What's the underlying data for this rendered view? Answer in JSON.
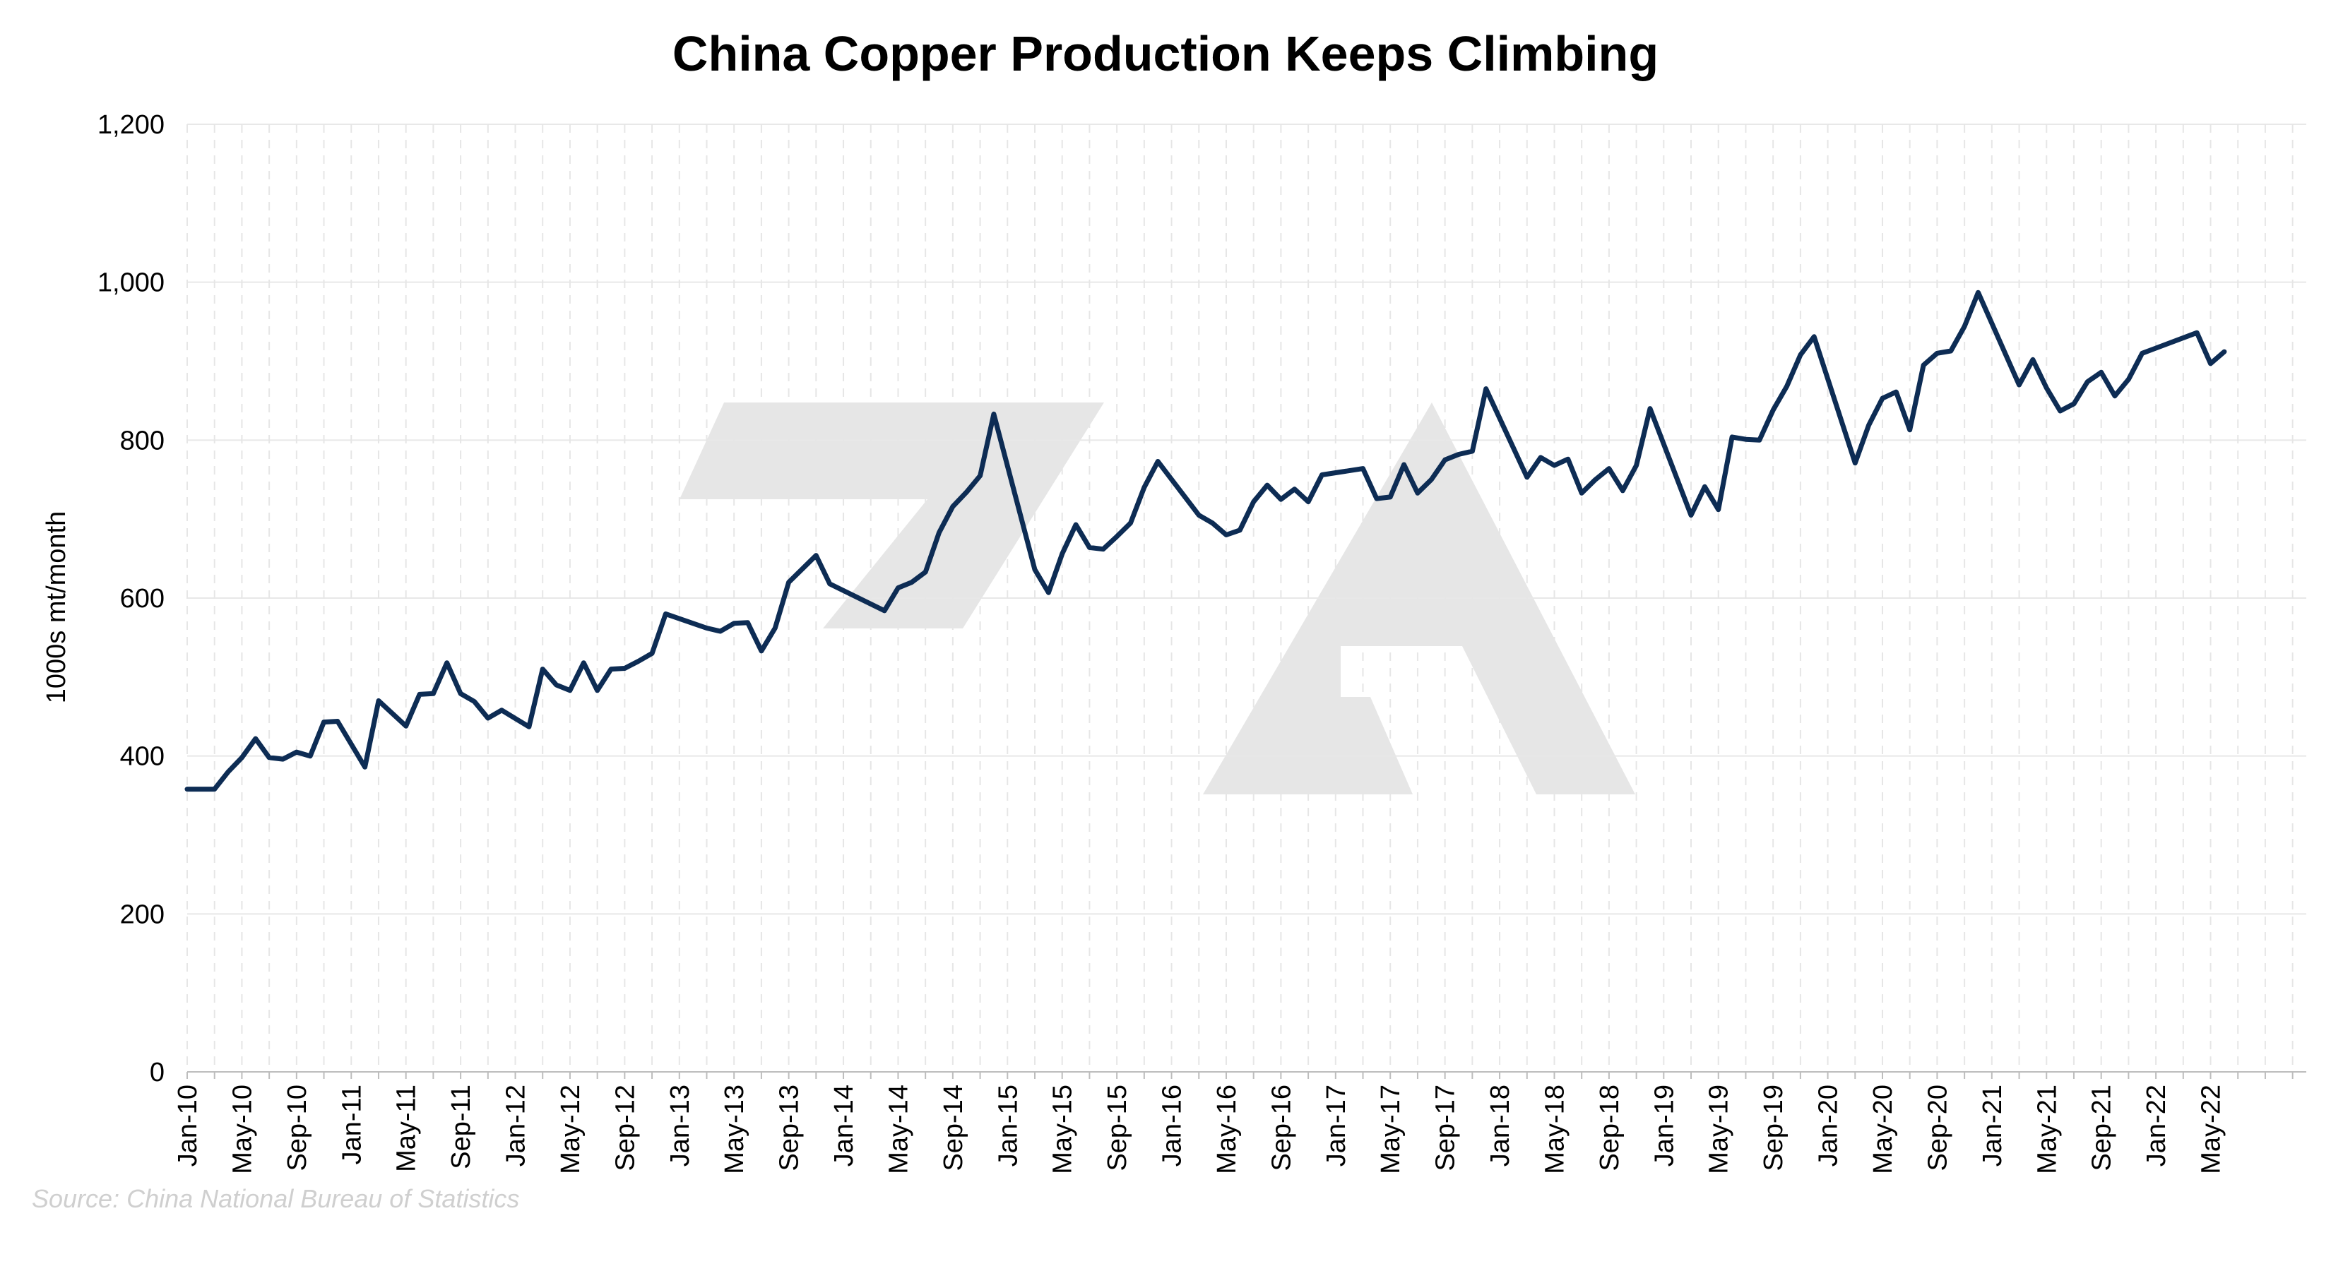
{
  "chart_data": {
    "type": "line",
    "title": "China Copper Production Keeps Climbing",
    "xlabel": "",
    "ylabel": "1000s mt/month",
    "source": "Source: China National Bureau of Statistics",
    "ylim": [
      0,
      1200
    ],
    "yticks": [
      "0",
      "200",
      "400",
      "600",
      "800",
      "1,000",
      "1,200"
    ],
    "xtick_labels": [
      "Jan-10",
      "May-10",
      "Sep-10",
      "Jan-11",
      "May-11",
      "Sep-11",
      "Jan-12",
      "May-12",
      "Sep-12",
      "Jan-13",
      "May-13",
      "Sep-13",
      "Jan-14",
      "May-14",
      "Sep-14",
      "Jan-15",
      "May-15",
      "Sep-15",
      "Jan-16",
      "May-16",
      "Sep-16",
      "Jan-17",
      "May-17",
      "Sep-17",
      "Jan-18",
      "May-18",
      "Sep-18",
      "Jan-19",
      "May-19",
      "Sep-19",
      "Jan-20",
      "May-20",
      "Sep-20",
      "Jan-21",
      "May-21",
      "Sep-21",
      "Jan-22",
      "May-22"
    ],
    "grid": true,
    "line_color": "#0d2c54",
    "watermark_color": "#e6e6e6",
    "series": [
      {
        "points": [
          [
            "2010-01",
            358
          ],
          [
            "2010-02",
            358
          ],
          [
            "2010-03",
            358
          ],
          [
            "2010-04",
            380
          ],
          [
            "2010-05",
            398
          ],
          [
            "2010-06",
            422
          ],
          [
            "2010-07",
            398
          ],
          [
            "2010-08",
            396
          ],
          [
            "2010-09",
            405
          ],
          [
            "2010-10",
            400
          ],
          [
            "2010-11",
            443
          ],
          [
            "2010-12",
            444
          ],
          [
            "2011-02",
            386
          ],
          [
            "2011-03",
            470
          ],
          [
            "2011-05",
            438
          ],
          [
            "2011-06",
            478
          ],
          [
            "2011-07",
            479
          ],
          [
            "2011-08",
            518
          ],
          [
            "2011-09",
            479
          ],
          [
            "2011-10",
            469
          ],
          [
            "2011-11",
            448
          ],
          [
            "2011-12",
            458
          ],
          [
            "2012-02",
            437
          ],
          [
            "2012-03",
            510
          ],
          [
            "2012-04",
            490
          ],
          [
            "2012-05",
            483
          ],
          [
            "2012-06",
            518
          ],
          [
            "2012-07",
            483
          ],
          [
            "2012-08",
            510
          ],
          [
            "2012-09",
            511
          ],
          [
            "2012-10",
            520
          ],
          [
            "2012-11",
            530
          ],
          [
            "2012-12",
            580
          ],
          [
            "2013-03",
            562
          ],
          [
            "2013-04",
            558
          ],
          [
            "2013-05",
            568
          ],
          [
            "2013-06",
            569
          ],
          [
            "2013-07",
            533
          ],
          [
            "2013-08",
            562
          ],
          [
            "2013-09",
            620
          ],
          [
            "2013-11",
            654
          ],
          [
            "2013-12",
            618
          ],
          [
            "2014-04",
            584
          ],
          [
            "2014-05",
            613
          ],
          [
            "2014-06",
            620
          ],
          [
            "2014-07",
            633
          ],
          [
            "2014-08",
            683
          ],
          [
            "2014-09",
            716
          ],
          [
            "2014-10",
            734
          ],
          [
            "2014-11",
            755
          ],
          [
            "2014-12",
            833
          ],
          [
            "2015-03",
            636
          ],
          [
            "2015-04",
            607
          ],
          [
            "2015-05",
            656
          ],
          [
            "2015-06",
            693
          ],
          [
            "2015-07",
            664
          ],
          [
            "2015-08",
            662
          ],
          [
            "2015-09",
            678
          ],
          [
            "2015-10",
            695
          ],
          [
            "2015-11",
            740
          ],
          [
            "2015-12",
            773
          ],
          [
            "2016-03",
            705
          ],
          [
            "2016-04",
            695
          ],
          [
            "2016-05",
            680
          ],
          [
            "2016-06",
            686
          ],
          [
            "2016-07",
            722
          ],
          [
            "2016-08",
            743
          ],
          [
            "2016-09",
            725
          ],
          [
            "2016-10",
            738
          ],
          [
            "2016-11",
            722
          ],
          [
            "2016-12",
            756
          ],
          [
            "2017-03",
            764
          ],
          [
            "2017-04",
            726
          ],
          [
            "2017-05",
            728
          ],
          [
            "2017-06",
            769
          ],
          [
            "2017-07",
            733
          ],
          [
            "2017-08",
            750
          ],
          [
            "2017-09",
            775
          ],
          [
            "2017-10",
            782
          ],
          [
            "2017-11",
            786
          ],
          [
            "2017-12",
            865
          ],
          [
            "2018-03",
            753
          ],
          [
            "2018-04",
            778
          ],
          [
            "2018-05",
            768
          ],
          [
            "2018-06",
            776
          ],
          [
            "2018-07",
            733
          ],
          [
            "2018-08",
            750
          ],
          [
            "2018-09",
            764
          ],
          [
            "2018-10",
            736
          ],
          [
            "2018-11",
            768
          ],
          [
            "2018-12",
            840
          ],
          [
            "2019-03",
            705
          ],
          [
            "2019-04",
            741
          ],
          [
            "2019-05",
            712
          ],
          [
            "2019-06",
            804
          ],
          [
            "2019-07",
            801
          ],
          [
            "2019-08",
            800
          ],
          [
            "2019-09",
            838
          ],
          [
            "2019-10",
            868
          ],
          [
            "2019-11",
            908
          ],
          [
            "2019-12",
            931
          ],
          [
            "2020-03",
            771
          ],
          [
            "2020-04",
            819
          ],
          [
            "2020-05",
            853
          ],
          [
            "2020-06",
            861
          ],
          [
            "2020-07",
            813
          ],
          [
            "2020-08",
            895
          ],
          [
            "2020-09",
            910
          ],
          [
            "2020-10",
            913
          ],
          [
            "2020-11",
            944
          ],
          [
            "2020-12",
            987
          ],
          [
            "2021-03",
            870
          ],
          [
            "2021-04",
            902
          ],
          [
            "2021-05",
            866
          ],
          [
            "2021-06",
            837
          ],
          [
            "2021-07",
            846
          ],
          [
            "2021-08",
            874
          ],
          [
            "2021-09",
            886
          ],
          [
            "2021-10",
            856
          ],
          [
            "2021-11",
            877
          ],
          [
            "2021-12",
            910
          ],
          [
            "2022-04",
            936
          ],
          [
            "2022-05",
            897
          ],
          [
            "2022-06",
            912
          ]
        ]
      }
    ]
  }
}
